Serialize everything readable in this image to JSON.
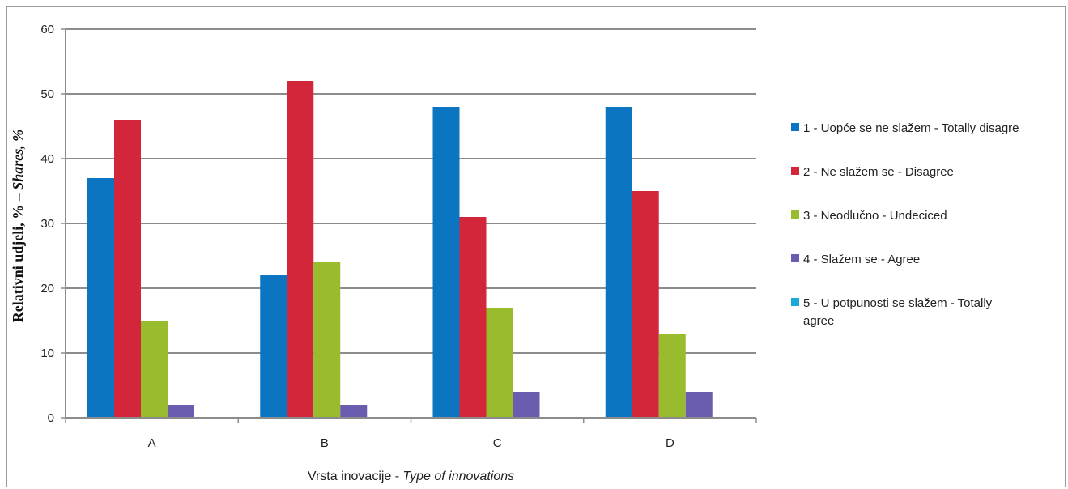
{
  "chart_data": {
    "type": "bar",
    "categories": [
      "A",
      "B",
      "C",
      "D"
    ],
    "series": [
      {
        "name": "1 - Uopće se ne slažem  - Totally disagree",
        "color": "#0b75c2",
        "values": [
          37,
          22,
          48,
          48
        ]
      },
      {
        "name": "2 - Ne slažem se  - Disagree",
        "color": "#d4263a",
        "values": [
          46,
          52,
          31,
          35
        ]
      },
      {
        "name": "3 - Neodlučno  - Undeciced",
        "color": "#99bb2e",
        "values": [
          15,
          24,
          17,
          13
        ]
      },
      {
        "name": "4 - Slažem se  - Agree",
        "color": "#6a5cae",
        "values": [
          2,
          2,
          4,
          4
        ]
      },
      {
        "name": "5 - U potpunosti se slažem  - Totally agree",
        "color": "#19a9d4",
        "values": [
          0,
          0,
          0,
          0
        ]
      }
    ],
    "xlabel": {
      "plain": "Vrsta inovacije  - ",
      "italic": "Type of innovations"
    },
    "ylabel": {
      "plain": "Relativni udjeli, % – ",
      "italic": "Shares, %"
    },
    "ylim": [
      0,
      60
    ],
    "yticks": [
      "0",
      "10",
      "20",
      "30",
      "40",
      "50",
      "60"
    ],
    "grid": true,
    "legend_position": "right",
    "legend_lines": [
      [
        "1 - Uopće se ne slažem  - Totally disagre"
      ],
      [
        "2 - Ne slažem se  - Disagree"
      ],
      [
        "3 - Neodlučno  - Undeciced"
      ],
      [
        "4 - Slažem se  - Agree"
      ],
      [
        "5 - U potpunosti se slažem  - Totally",
        "agree"
      ]
    ]
  }
}
